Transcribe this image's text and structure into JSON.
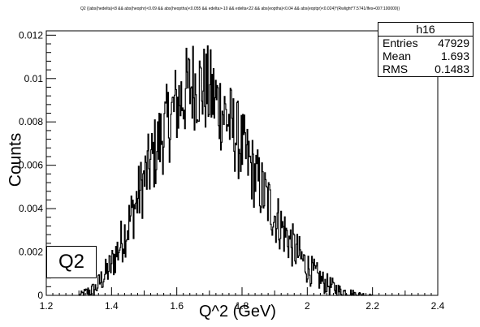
{
  "header": {
    "title": "Q2 {(abs(hedelta)<8 && abs(heophr)<0.09 && abs(heoptha)<0.055 && edelta>-10 && edelta<22 && abs(eoptha)<0.04 && abs(eoptpr)<0.024)*(Rwlight*7.5741/lfes+007:100000)}"
  },
  "stats_box": {
    "name": "h16",
    "rows": [
      {
        "key": "Entries",
        "value": "47929"
      },
      {
        "key": "Mean",
        "value": "1.693"
      },
      {
        "key": "RMS",
        "value": "0.1483"
      }
    ]
  },
  "label_box": {
    "text": "Q2"
  },
  "chart_data": {
    "type": "histogram",
    "title": "Q2 {(abs(hedelta)<8 && abs(heophr)<0.09 && abs(heoptha)<0.055 && edelta>-10 && edelta<22 && abs(eoptha)<0.04 && abs(eoptpr)<0.024)*(Rwlight*7.5741/lfes+007:100000)}",
    "xlabel": "Q^2 (GeV)",
    "ylabel": "Counts",
    "xlim": [
      1.2,
      2.4
    ],
    "ylim": [
      0,
      0.0122
    ],
    "x_ticks": [
      "1.2",
      "1.4",
      "1.6",
      "1.8",
      "2",
      "2.2",
      "2.4"
    ],
    "y_ticks": [
      "0",
      "0.002",
      "0.004",
      "0.006",
      "0.008",
      "0.01",
      "0.012"
    ],
    "grid": false,
    "bin_range": [
      1.3,
      2.2
    ],
    "bins": 400,
    "approx_shape": {
      "x": [
        1.3,
        1.35,
        1.4,
        1.45,
        1.5,
        1.55,
        1.6,
        1.65,
        1.7,
        1.75,
        1.8,
        1.85,
        1.9,
        1.95,
        2.0,
        2.05,
        2.1,
        2.15,
        2.2
      ],
      "y": [
        0.0,
        0.0003,
        0.0014,
        0.0032,
        0.0053,
        0.0072,
        0.0088,
        0.0098,
        0.0094,
        0.0083,
        0.0068,
        0.0052,
        0.0037,
        0.0024,
        0.0013,
        0.0006,
        0.0002,
        5e-05,
        0.0
      ]
    }
  }
}
